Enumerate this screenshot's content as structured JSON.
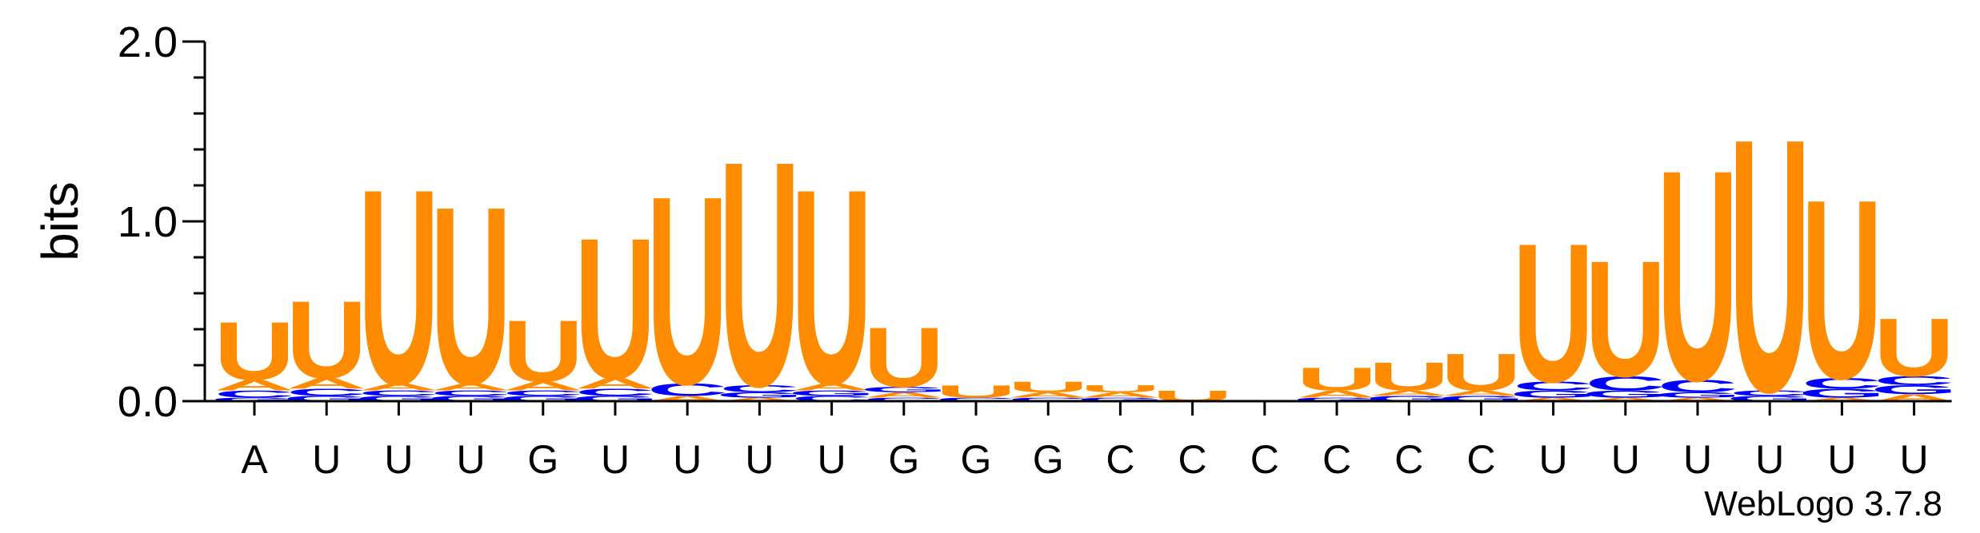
{
  "chart_data": {
    "type": "sequence-logo",
    "ylabel": "bits",
    "ylim": [
      0,
      2
    ],
    "y_ticks": [
      "0.0",
      "1.0",
      "2.0"
    ],
    "positions": [
      "A",
      "U",
      "U",
      "U",
      "G",
      "U",
      "U",
      "U",
      "U",
      "G",
      "G",
      "G",
      "C",
      "C",
      "C",
      "C",
      "C",
      "C",
      "U",
      "U",
      "U",
      "U",
      "U",
      "U"
    ],
    "colors": {
      "U": "#ff8c00",
      "A": "#ff8c00",
      "C": "#0000ff",
      "G": "#0000ff"
    },
    "stacks": [
      [
        [
          "G",
          0.02
        ],
        [
          "C",
          0.04
        ],
        [
          "A",
          0.06
        ],
        [
          "U",
          0.33
        ]
      ],
      [
        [
          "G",
          0.03
        ],
        [
          "C",
          0.04
        ],
        [
          "A",
          0.06
        ],
        [
          "U",
          0.44
        ]
      ],
      [
        [
          "G",
          0.03
        ],
        [
          "C",
          0.03
        ],
        [
          "A",
          0.04
        ],
        [
          "U",
          1.11
        ]
      ],
      [
        [
          "G",
          0.03
        ],
        [
          "C",
          0.03
        ],
        [
          "A",
          0.04
        ],
        [
          "U",
          1.01
        ]
      ],
      [
        [
          "G",
          0.03
        ],
        [
          "C",
          0.03
        ],
        [
          "A",
          0.05
        ],
        [
          "U",
          0.35
        ]
      ],
      [
        [
          "G",
          0.03
        ],
        [
          "C",
          0.04
        ],
        [
          "A",
          0.06
        ],
        [
          "U",
          0.8
        ]
      ],
      [
        [
          "A",
          0.03
        ],
        [
          "C",
          0.07
        ],
        [
          "U",
          1.07
        ]
      ],
      [
        [
          "A",
          0.02
        ],
        [
          "G",
          0.03
        ],
        [
          "C",
          0.04
        ],
        [
          "U",
          1.28
        ]
      ],
      [
        [
          "C",
          0.03
        ],
        [
          "G",
          0.03
        ],
        [
          "A",
          0.04
        ],
        [
          "U",
          1.11
        ]
      ],
      [
        [
          "C",
          0.02
        ],
        [
          "A",
          0.03
        ],
        [
          "G",
          0.03
        ],
        [
          "U",
          0.34
        ]
      ],
      [
        [
          "C",
          0.02
        ],
        [
          "U",
          0.07
        ]
      ],
      [
        [
          "C",
          0.02
        ],
        [
          "A",
          0.03
        ],
        [
          "U",
          0.06
        ]
      ],
      [
        [
          "G",
          0.02
        ],
        [
          "A",
          0.03
        ],
        [
          "U",
          0.04
        ]
      ],
      [
        [
          "U",
          0.06
        ]
      ],
      [],
      [
        [
          "G",
          0.02
        ],
        [
          "A",
          0.04
        ],
        [
          "U",
          0.13
        ]
      ],
      [
        [
          "G",
          0.03
        ],
        [
          "A",
          0.03
        ],
        [
          "U",
          0.16
        ]
      ],
      [
        [
          "G",
          0.03
        ],
        [
          "A",
          0.03
        ],
        [
          "U",
          0.21
        ]
      ],
      [
        [
          "A",
          0.02
        ],
        [
          "G",
          0.04
        ],
        [
          "C",
          0.05
        ],
        [
          "U",
          0.79
        ]
      ],
      [
        [
          "A",
          0.02
        ],
        [
          "G",
          0.04
        ],
        [
          "C",
          0.08
        ],
        [
          "U",
          0.66
        ]
      ],
      [
        [
          "A",
          0.02
        ],
        [
          "G",
          0.03
        ],
        [
          "C",
          0.07
        ],
        [
          "U",
          1.2
        ]
      ],
      [
        [
          "G",
          0.03
        ],
        [
          "C",
          0.03
        ],
        [
          "U",
          1.44
        ]
      ],
      [
        [
          "A",
          0.02
        ],
        [
          "G",
          0.05
        ],
        [
          "C",
          0.06
        ],
        [
          "U",
          1.02
        ]
      ],
      [
        [
          "A",
          0.04
        ],
        [
          "G",
          0.05
        ],
        [
          "C",
          0.05
        ],
        [
          "U",
          0.33
        ]
      ]
    ]
  },
  "credit": "WebLogo 3.7.8"
}
